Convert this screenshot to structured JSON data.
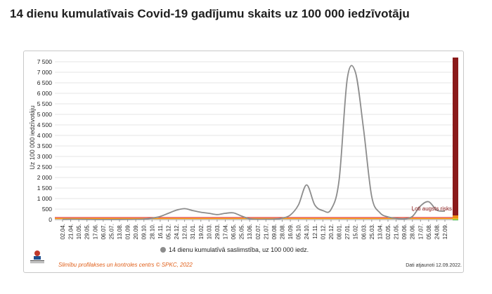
{
  "page": {
    "title": "14 dienu kumulatīvais Covid-19 gadījumu skaits uz 100 000 iedzīvotāju"
  },
  "chart_data": {
    "type": "line",
    "title": "",
    "ylabel": "Uz 100 000 iedzīvotāju",
    "xlabel": "",
    "ylim": [
      0,
      7700
    ],
    "yticks": [
      0,
      500,
      1000,
      1500,
      2000,
      2500,
      3000,
      3500,
      4000,
      4500,
      5000,
      5500,
      6000,
      6500,
      7000,
      7500
    ],
    "ytick_labels": [
      "0",
      "500",
      "1 000",
      "1 500",
      "2 000",
      "2 500",
      "3 000",
      "3 500",
      "4 000",
      "4 500",
      "5 000",
      "5 500",
      "6 000",
      "6 500",
      "7 000",
      "7 500"
    ],
    "categories": [
      "02.04.",
      "21.04.",
      "10.05.",
      "29.05.",
      "17.06.",
      "06.07.",
      "25.07.",
      "13.08.",
      "01.09.",
      "20.09.",
      "09.10.",
      "28.10.",
      "16.11.",
      "05.12.",
      "24.12.",
      "12.01.",
      "31.01.",
      "19.02.",
      "10.03.",
      "29.03.",
      "17.04.",
      "06.05.",
      "25.05.",
      "13.06.",
      "02.07.",
      "21.07.",
      "09.08.",
      "28.08.",
      "16.09.",
      "05.10.",
      "24.10.",
      "12.11.",
      "01.12.",
      "20.12.",
      "08.01.",
      "27.01.",
      "15.02.",
      "06.03.",
      "25.03.",
      "13.04.",
      "02.05.",
      "21.05.",
      "09.06.",
      "28.06.",
      "17.07.",
      "05.08.",
      "24.08.",
      "12.09."
    ],
    "series": [
      {
        "name": "14 dienu kumulatīvā saslimstība, uz 100 000 iedz.",
        "color": "#8c8c8c",
        "values": [
          10,
          15,
          12,
          8,
          5,
          4,
          5,
          6,
          8,
          12,
          25,
          70,
          150,
          300,
          450,
          520,
          430,
          350,
          300,
          240,
          300,
          320,
          170,
          40,
          15,
          15,
          25,
          70,
          220,
          700,
          1650,
          700,
          430,
          480,
          1900,
          6700,
          7000,
          4300,
          1100,
          330,
          130,
          60,
          40,
          150,
          650,
          850,
          450,
          400
        ]
      }
    ],
    "thresholds": [
      {
        "label": "",
        "value": 50,
        "color": "#ff9900"
      },
      {
        "label": "",
        "value": 100,
        "color": "#e03c31"
      }
    ],
    "bands": [
      {
        "from": 0,
        "to": 20,
        "color": "#33aa33"
      },
      {
        "from": 20,
        "to": 50,
        "color": "#d8e03a"
      },
      {
        "from": 50,
        "to": 200,
        "color": "#f08c14"
      },
      {
        "from": 200,
        "to": 7700,
        "color": "#8b1a1a"
      }
    ],
    "annotation": "Ļoti augsts risks",
    "legend": "bottom"
  },
  "footer": {
    "org_name": "Slimību profilakses un kontroles centrs © SPKC, 2022",
    "updated": "Dati atjaunoti 12.09.2022.",
    "logo_icon": "latvia-coat-of-arms-icon"
  }
}
